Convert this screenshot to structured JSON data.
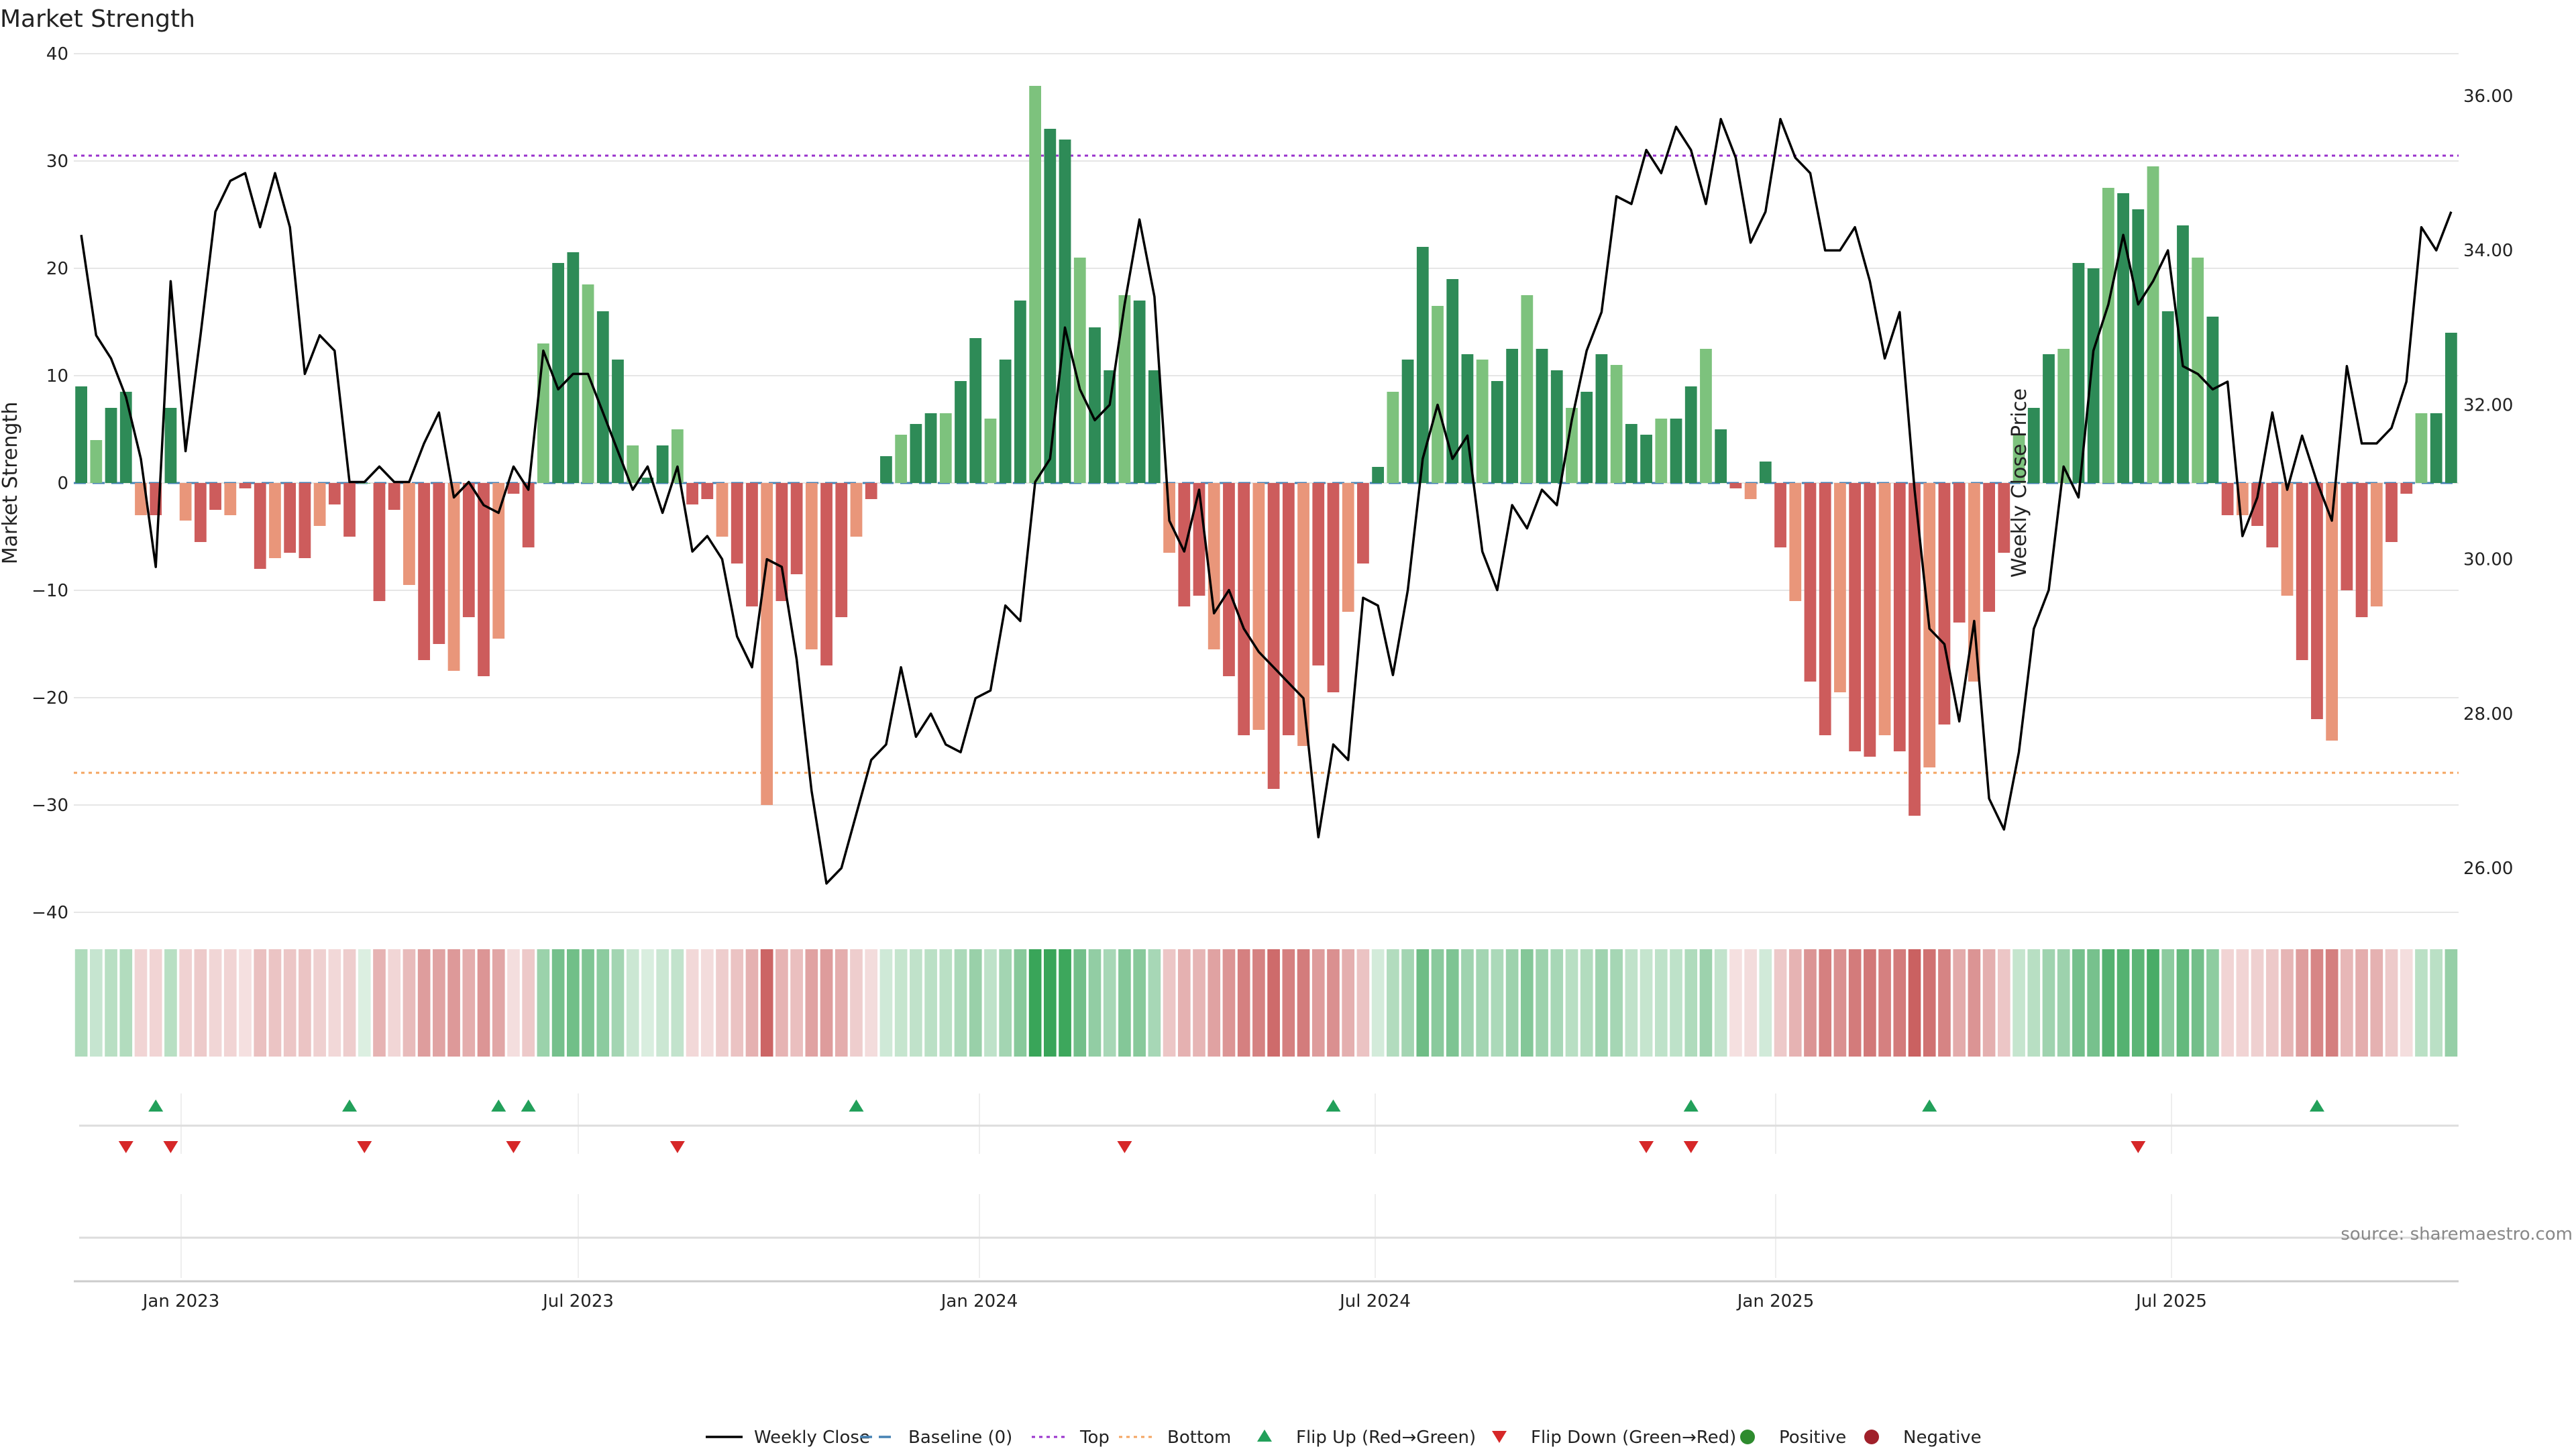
{
  "chart_data": {
    "type": "bar",
    "title": "Market Strength",
    "ylabel": "Market Strength",
    "y2label": "Weekly Close Price",
    "ylim": [
      -40,
      40
    ],
    "y2lim": [
      25.0,
      36.3
    ],
    "yticks": [
      40,
      30,
      20,
      10,
      0,
      -10,
      -20,
      -30,
      -40
    ],
    "y2ticks": [
      "36.00",
      "34.00",
      "32.00",
      "30.00",
      "28.00",
      "26.00"
    ],
    "xticks": [
      "Jan 2023",
      "Jul 2023",
      "Jan 2024",
      "Jul 2024",
      "Jan 2025",
      "Jul 2025"
    ],
    "top_line": 30.5,
    "bottom_line": -27,
    "source": "source: sharemaestro.com",
    "legend": [
      "Weekly Close",
      "Baseline (0)",
      "Top",
      "Bottom",
      "Flip Up (Red→Green)",
      "Flip Down (Green→Red)",
      "Positive",
      "Negative"
    ],
    "strength": [
      9,
      4,
      7,
      8.5,
      -3,
      -3,
      7,
      -3.5,
      -5.5,
      -2.5,
      -3,
      -0.5,
      -8,
      -7,
      -6.5,
      -7,
      -4,
      -2,
      -5,
      0,
      -11,
      -2.5,
      -9.5,
      -16.5,
      -15,
      -17.5,
      -12.5,
      -18,
      -14.5,
      -1,
      -6,
      13,
      20.5,
      21.5,
      18.5,
      16,
      11.5,
      3.5,
      0.5,
      3.5,
      5,
      -2,
      -1.5,
      -5,
      -7.5,
      -11.5,
      -30,
      -11,
      -8.5,
      -15.5,
      -17,
      -12.5,
      -5,
      -1.5,
      2.5,
      4.5,
      5.5,
      6.5,
      6.5,
      9.5,
      13.5,
      6,
      11.5,
      17,
      37,
      33,
      32,
      21,
      14.5,
      10.5,
      17.5,
      17,
      10.5,
      -6.5,
      -11.5,
      -10.5,
      -15.5,
      -18,
      -23.5,
      -23,
      -28.5,
      -23.5,
      -24.5,
      -17,
      -19.5,
      -12,
      -7.5,
      1.5,
      8.5,
      11.5,
      22,
      16.5,
      19,
      12,
      11.5,
      9.5,
      12.5,
      17.5,
      12.5,
      10.5,
      7,
      8.5,
      12,
      11,
      5.5,
      4.5,
      6,
      6,
      9,
      12.5,
      5,
      -0.5,
      -1.5,
      2,
      -6,
      -11,
      -18.5,
      -23.5,
      -19.5,
      -25,
      -25.5,
      -23.5,
      -25,
      -31,
      -26.5,
      -22.5,
      -13,
      -18.5,
      -12,
      -6.5,
      4.5,
      7,
      12,
      12.5,
      20.5,
      20,
      27.5,
      27,
      25.5,
      29.5,
      16,
      24,
      21,
      15.5,
      -3,
      -3,
      -4,
      -6,
      -10.5,
      -16.5,
      -22,
      -24,
      -10,
      -12.5,
      -11.5,
      -5.5,
      -1,
      6.5,
      6.5,
      14
    ],
    "price": [
      34.2,
      32.9,
      32.6,
      32.1,
      31.3,
      29.9,
      33.6,
      31.4,
      32.9,
      34.5,
      34.9,
      35.0,
      34.3,
      35.0,
      34.3,
      32.4,
      32.9,
      32.7,
      31.0,
      31.0,
      31.2,
      31.0,
      31.0,
      31.5,
      31.9,
      30.8,
      31.0,
      30.7,
      30.6,
      31.2,
      30.9,
      32.7,
      32.2,
      32.4,
      32.4,
      31.9,
      31.4,
      30.9,
      31.2,
      30.6,
      31.2,
      30.1,
      30.3,
      30.0,
      29.0,
      28.6,
      30.0,
      29.9,
      28.7,
      27.0,
      25.8,
      26.0,
      26.7,
      27.4,
      27.6,
      28.6,
      27.7,
      28.0,
      27.6,
      27.5,
      28.2,
      28.3,
      29.4,
      29.2,
      31.0,
      31.3,
      33.0,
      32.2,
      31.8,
      32.0,
      33.3,
      34.4,
      33.4,
      30.5,
      30.1,
      30.9,
      29.3,
      29.6,
      29.1,
      28.8,
      28.6,
      28.4,
      28.2,
      26.4,
      27.6,
      27.4,
      29.5,
      29.4,
      28.5,
      29.6,
      31.3,
      32.0,
      31.3,
      31.6,
      30.1,
      29.6,
      30.7,
      30.4,
      30.9,
      30.7,
      31.8,
      32.7,
      33.2,
      34.7,
      34.6,
      35.3,
      35.0,
      35.6,
      35.3,
      34.6,
      35.7,
      35.2,
      34.1,
      34.5,
      35.7,
      35.2,
      35.0,
      34.0,
      34.0,
      34.3,
      33.6,
      32.6,
      33.2,
      30.9,
      29.1,
      28.9,
      27.9,
      29.2,
      26.9,
      26.5,
      27.5,
      29.1,
      29.6,
      31.2,
      30.8,
      32.7,
      33.3,
      34.2,
      33.3,
      33.6,
      34.0,
      32.5,
      32.4,
      32.2,
      32.3,
      30.3,
      30.8,
      31.9,
      30.9,
      31.6,
      31.0,
      30.5,
      32.5,
      31.5,
      31.5,
      31.7,
      32.3,
      34.3,
      34.0,
      34.5
    ],
    "flip_up": [
      5,
      18,
      28,
      30,
      52,
      84,
      108,
      124,
      150
    ],
    "flip_down": [
      3,
      6,
      19,
      29,
      40,
      70,
      105,
      108,
      138
    ]
  },
  "colors": {
    "pos_strong": "#2e8b57",
    "pos_light": "#7dc27d",
    "neg_strong": "#cd5c5c",
    "neg_light": "#e9967a",
    "price_line": "#000000",
    "baseline": "#4682b4",
    "top": "#9932cc",
    "bottom": "#f4a460",
    "flip_up": "#22a05a",
    "flip_down": "#d62728",
    "positive_dot": "#2e8b2e",
    "negative_dot": "#a0202a"
  }
}
